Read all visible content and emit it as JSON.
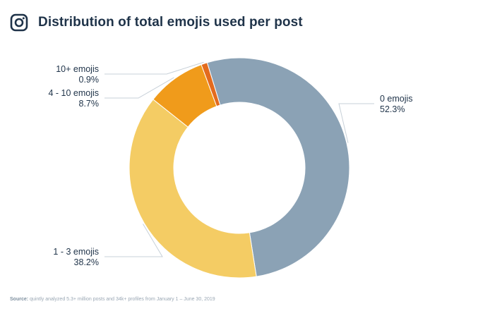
{
  "header": {
    "title": "Distribution of total emojis used per post",
    "icon": "instagram-icon"
  },
  "chart_data": {
    "type": "pie",
    "subtype": "donut",
    "title": "Distribution of total emojis used per post",
    "slices": [
      {
        "label": "0 emojis",
        "value": 52.3,
        "value_label": "52.3%",
        "color": "#8ba2b5"
      },
      {
        "label": "1 - 3 emojis",
        "value": 38.2,
        "value_label": "38.2%",
        "color": "#f4cc64"
      },
      {
        "label": "4 - 10 emojis",
        "value": 8.7,
        "value_label": "8.7%",
        "color": "#f09b1b"
      },
      {
        "label": "10+ emojis",
        "value": 0.9,
        "value_label": "0.9%",
        "color": "#e36b1e"
      }
    ],
    "legend": "none"
  },
  "source": {
    "prefix": "Source:",
    "text": "quintly analyzed 5.3+ million posts and 34k+ profiles from January 1 – June 30, 2019"
  }
}
